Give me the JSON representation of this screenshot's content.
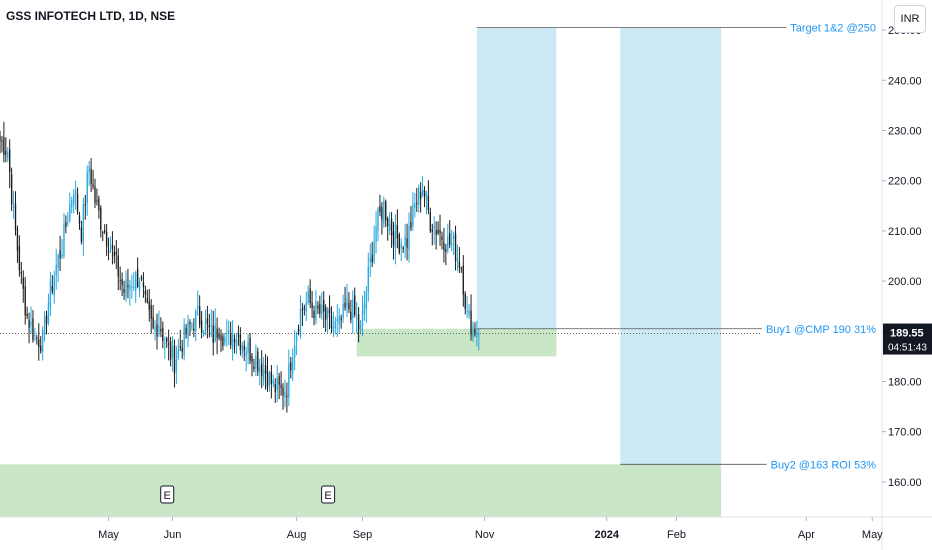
{
  "chart_title": "GSS INFOTECH LTD, 1D, NSE",
  "currency_button": "INR",
  "colors": {
    "up": "#26a9e0",
    "down": "#1e1e1e",
    "target_zone": "#cde9f6",
    "buy_zone": "#c9e6c6",
    "annotation_text": "#2196f3",
    "price_tag_bg": "#131722",
    "axis_text": "#131722"
  },
  "chart_data": {
    "type": "candlestick",
    "ylim": [
      153,
      256
    ],
    "y_ticks": [
      160,
      170,
      180,
      190,
      200,
      210,
      220,
      230,
      240,
      250
    ],
    "y_tick_labels": [
      "160.00",
      "170.00",
      "180.00",
      "190.00",
      "200.00",
      "210.00",
      "220.00",
      "230.00",
      "240.00",
      "250.00"
    ],
    "x_labels": [
      "May",
      "Jun",
      "Aug",
      "Sep",
      "Nov",
      "2024",
      "Feb",
      "Apr",
      "May"
    ],
    "x_label_bold": [
      false,
      false,
      false,
      false,
      false,
      true,
      false,
      false,
      false
    ],
    "x_index_range": [
      0,
      455
    ],
    "x_label_index": [
      56,
      89,
      153,
      187,
      250,
      313,
      349,
      416,
      450
    ],
    "last_price": "189.55",
    "countdown": "04:51:43",
    "earnings_markers": [
      {
        "label": "E",
        "index": 86
      },
      {
        "label": "E",
        "index": 169
      }
    ],
    "zones": [
      {
        "kind": "target",
        "x_index": [
          246,
          287
        ],
        "y": [
          189.5,
          250.5
        ]
      },
      {
        "kind": "target",
        "x_index": [
          320,
          372
        ],
        "y": [
          163.5,
          250.5
        ]
      },
      {
        "kind": "buy",
        "x_index": [
          184,
          287
        ],
        "y": [
          185,
          190.5
        ]
      },
      {
        "kind": "buy",
        "x_index": [
          0,
          372
        ],
        "y": [
          153,
          163.5
        ]
      }
    ],
    "annotations": [
      {
        "text": "Target 1&2 @250",
        "price": 250.5,
        "x_from_index": 246
      },
      {
        "text": "Buy1 @CMP 190 31%",
        "price": 190.5,
        "x_from_index": 246
      },
      {
        "text": "Buy2 @163 ROI 53%",
        "price": 163.5,
        "x_from_index": 320
      }
    ],
    "keypoints": [
      [
        0,
        228
      ],
      [
        4,
        226
      ],
      [
        7,
        213
      ],
      [
        11,
        200
      ],
      [
        14,
        193
      ],
      [
        18,
        189
      ],
      [
        22,
        188
      ],
      [
        25,
        196
      ],
      [
        29,
        203
      ],
      [
        32,
        207
      ],
      [
        35,
        213
      ],
      [
        38,
        219
      ],
      [
        42,
        210
      ],
      [
        46,
        223
      ],
      [
        49,
        216
      ],
      [
        52,
        212
      ],
      [
        56,
        208
      ],
      [
        60,
        203
      ],
      [
        64,
        198
      ],
      [
        68,
        200
      ],
      [
        72,
        201
      ],
      [
        75,
        195
      ],
      [
        79,
        190
      ],
      [
        82,
        192
      ],
      [
        86,
        187
      ],
      [
        90,
        184
      ],
      [
        94,
        188
      ],
      [
        98,
        191
      ],
      [
        102,
        193
      ],
      [
        106,
        191
      ],
      [
        110,
        189
      ],
      [
        113,
        191
      ],
      [
        117,
        188
      ],
      [
        121,
        190
      ],
      [
        125,
        188
      ],
      [
        129,
        186
      ],
      [
        133,
        184
      ],
      [
        137,
        182
      ],
      [
        141,
        179
      ],
      [
        145,
        178
      ],
      [
        148,
        179
      ],
      [
        151,
        187
      ],
      [
        155,
        194
      ],
      [
        159,
        196
      ],
      [
        163,
        194
      ],
      [
        167,
        193
      ],
      [
        171,
        191
      ],
      [
        175,
        191
      ],
      [
        179,
        195
      ],
      [
        182,
        194
      ],
      [
        186,
        190
      ],
      [
        190,
        201
      ],
      [
        194,
        211
      ],
      [
        198,
        215
      ],
      [
        202,
        210
      ],
      [
        206,
        208
      ],
      [
        210,
        208
      ],
      [
        214,
        215
      ],
      [
        218,
        219
      ],
      [
        222,
        212
      ],
      [
        226,
        210
      ],
      [
        230,
        208
      ],
      [
        234,
        207
      ],
      [
        238,
        203
      ],
      [
        241,
        193
      ],
      [
        244,
        191
      ],
      [
        247,
        189.55
      ]
    ]
  }
}
